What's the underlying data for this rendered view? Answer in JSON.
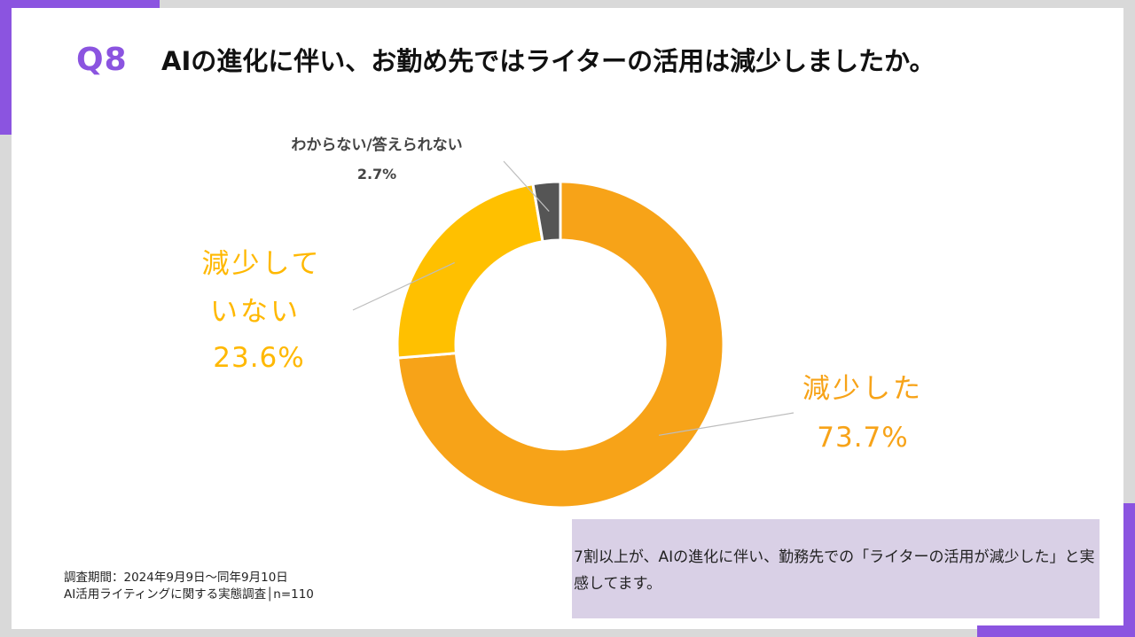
{
  "colors": {
    "accent": "#8b54e0",
    "main_orange": "#f7a318",
    "secondary_yellow": "#ffc000",
    "dark_gray": "#555555",
    "summary_bg": "#d9d0e6"
  },
  "header": {
    "q_number": "Q8",
    "title": "AIの進化に伴い、お勤め先ではライターの活用は減少しましたか。"
  },
  "chart_data": {
    "type": "pie",
    "style": "donut",
    "title": "AIの進化に伴い、お勤め先ではライターの活用は減少しましたか。",
    "series": [
      {
        "name": "減少した",
        "value": 73.7,
        "label": "73.7%",
        "color": "#f7a318"
      },
      {
        "name": "減少していない",
        "value": 23.6,
        "label": "23.6%",
        "color": "#ffc000"
      },
      {
        "name": "わからない/答えられない",
        "value": 2.7,
        "label": "2.7%",
        "color": "#555555"
      }
    ],
    "order": "clockwise from top",
    "label_lines": {
      "reduced_1": "減少した",
      "not_reduced_1": "減少して",
      "not_reduced_2": "いない",
      "unknown_1": "わからない/答えられない"
    }
  },
  "footer": {
    "period": "調査期間：2024年9月9日～同年9月10日",
    "survey": "AI活用ライティングに関する実態調査│n=110"
  },
  "summary": {
    "text": "7割以上が、AIの進化に伴い、勤務先での「ライターの活用が減少した」と実感してます。"
  }
}
